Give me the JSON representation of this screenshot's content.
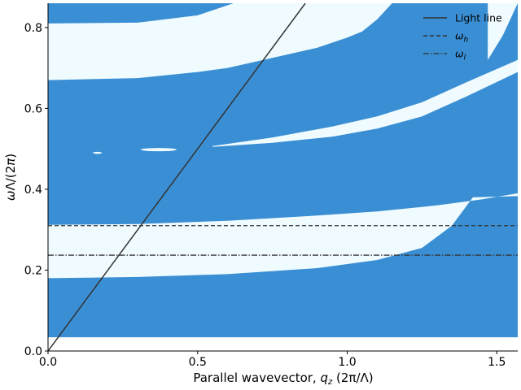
{
  "chart_data": {
    "type": "heatmap",
    "title": "",
    "xlabel": "Parallel wavevector, q_z (2π/Λ)",
    "ylabel": "ωΛ/(2π)",
    "xlim": [
      0,
      1.57
    ],
    "ylim": [
      0,
      0.86
    ],
    "xticks": [
      "0.0",
      "0.5",
      "1.0",
      "1.5"
    ],
    "xtick_values": [
      0.0,
      0.5,
      1.0,
      1.5
    ],
    "yticks": [
      "0.0",
      "0.2",
      "0.4",
      "0.6",
      "0.8"
    ],
    "ytick_values": [
      0.0,
      0.2,
      0.4,
      0.6,
      0.8
    ],
    "map_y_range": [
      0.034,
      0.86
    ],
    "colors": {
      "band_fill": "#3a8fd4",
      "gap_fill": "#f0fbff",
      "line": "#333333"
    },
    "legend_position": "top-right",
    "series": [
      {
        "name": "Light line",
        "style": "solid",
        "kind": "light_line",
        "slope": 1.0
      },
      {
        "name": "ω_h",
        "style": "dashed",
        "kind": "hline",
        "y": 0.31
      },
      {
        "name": "ω_l",
        "style": "dashdot",
        "kind": "hline",
        "y": 0.237
      }
    ],
    "gap_regions": [
      {
        "name": "lower gap",
        "lower": [
          [
            0,
            0.18
          ],
          [
            0.3,
            0.183
          ],
          [
            0.6,
            0.19
          ],
          [
            0.9,
            0.205
          ],
          [
            1.1,
            0.225
          ],
          [
            1.25,
            0.255
          ],
          [
            1.35,
            0.31
          ],
          [
            1.42,
            0.38
          ],
          [
            1.57,
            0.383
          ]
        ],
        "upper": [
          [
            0,
            0.312
          ],
          [
            0.3,
            0.314
          ],
          [
            0.6,
            0.322
          ],
          [
            0.9,
            0.335
          ],
          [
            1.1,
            0.345
          ],
          [
            1.3,
            0.36
          ],
          [
            1.45,
            0.375
          ],
          [
            1.57,
            0.39
          ]
        ]
      },
      {
        "name": "middle gap",
        "lower": [
          [
            0.55,
            0.505
          ],
          [
            0.75,
            0.515
          ],
          [
            0.95,
            0.53
          ],
          [
            1.1,
            0.55
          ],
          [
            1.25,
            0.58
          ],
          [
            1.4,
            0.63
          ],
          [
            1.57,
            0.69
          ]
        ],
        "upper": [
          [
            0.55,
            0.507
          ],
          [
            0.75,
            0.528
          ],
          [
            0.95,
            0.555
          ],
          [
            1.1,
            0.58
          ],
          [
            1.25,
            0.615
          ],
          [
            1.4,
            0.665
          ],
          [
            1.57,
            0.72
          ]
        ]
      },
      {
        "name": "upper gap",
        "lower": [
          [
            0,
            0.67
          ],
          [
            0.3,
            0.675
          ],
          [
            0.5,
            0.69
          ],
          [
            0.6,
            0.7
          ],
          [
            0.75,
            0.725
          ],
          [
            0.9,
            0.75
          ],
          [
            1.0,
            0.775
          ],
          [
            1.05,
            0.79
          ],
          [
            1.1,
            0.82
          ],
          [
            1.15,
            0.86
          ]
        ],
        "upper": [
          [
            0,
            0.81
          ],
          [
            0.3,
            0.812
          ],
          [
            0.5,
            0.83
          ],
          [
            0.62,
            0.86
          ],
          [
            1.15,
            0.86
          ]
        ]
      },
      {
        "name": "edge gap",
        "lower": [
          [
            1.47,
            0.72
          ],
          [
            1.52,
            0.78
          ],
          [
            1.57,
            0.86
          ]
        ],
        "upper": [
          [
            1.47,
            0.86
          ],
          [
            1.52,
            0.86
          ],
          [
            1.57,
            0.86
          ]
        ]
      }
    ],
    "gap_islands": [
      {
        "x": 0.165,
        "y": 0.49,
        "half_width": 0.015,
        "half_height": 0.0025
      },
      {
        "x": 0.37,
        "y": 0.498,
        "half_width": 0.06,
        "half_height": 0.004
      }
    ]
  }
}
